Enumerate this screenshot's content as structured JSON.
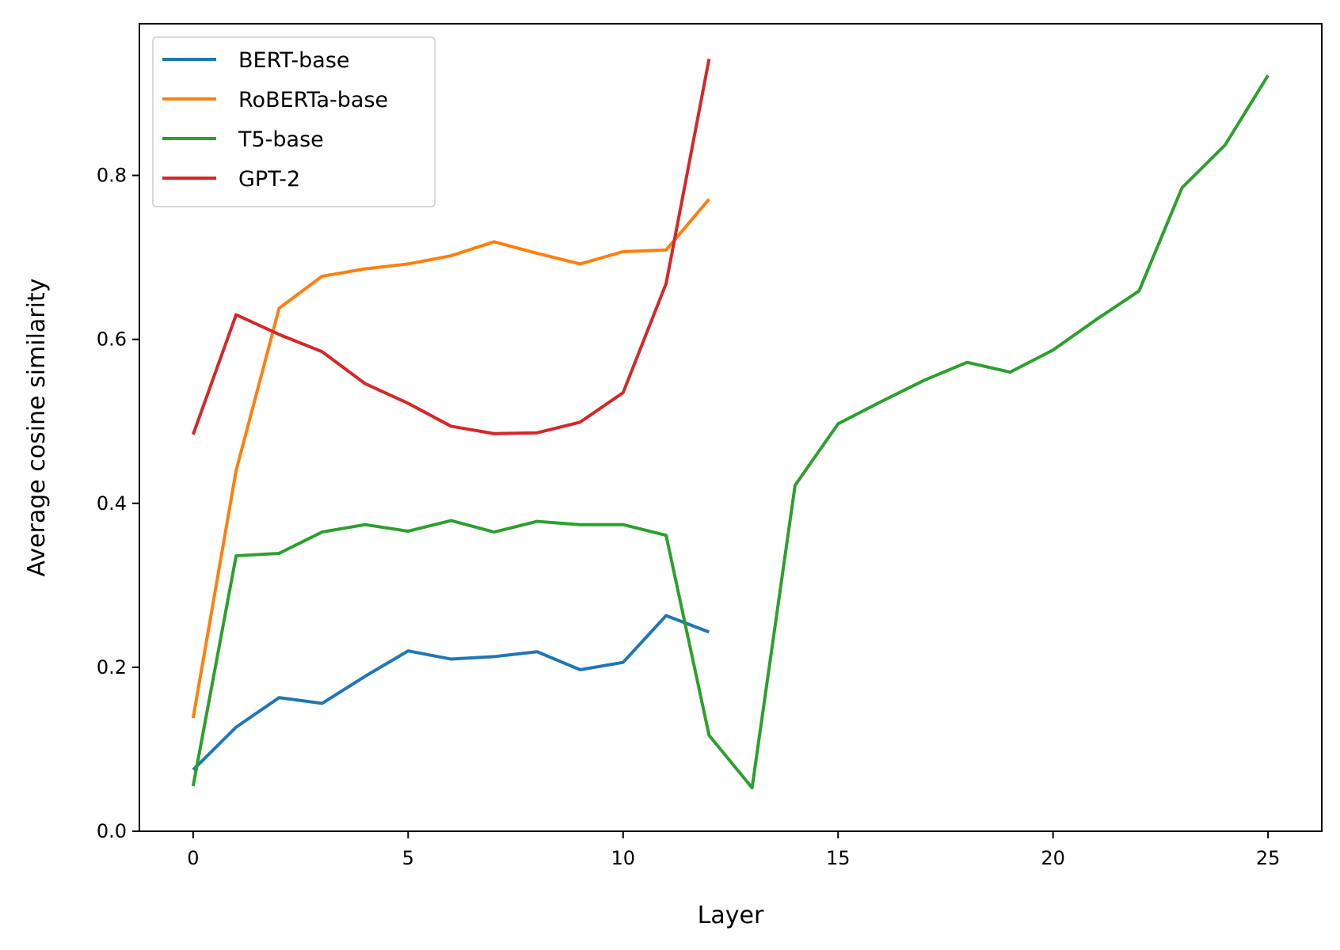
{
  "chart_data": {
    "type": "line",
    "xlabel": "Layer",
    "ylabel": "Average cosine similarity",
    "xlim": [
      -1.25,
      26.25
    ],
    "ylim": [
      0,
      0.985
    ],
    "xticks": [
      "0",
      "5",
      "10",
      "15",
      "20",
      "25"
    ],
    "yticks": [
      "0.0",
      "0.2",
      "0.4",
      "0.6",
      "0.8"
    ],
    "grid": false,
    "legend_position": "top-left",
    "series": [
      {
        "name": "BERT-base",
        "color": "#1f77b4",
        "x": [
          0,
          1,
          2,
          3,
          4,
          5,
          6,
          7,
          8,
          9,
          10,
          11,
          12
        ],
        "values": [
          0.075,
          0.127,
          0.163,
          0.156,
          0.189,
          0.22,
          0.21,
          0.213,
          0.219,
          0.197,
          0.206,
          0.263,
          0.243
        ]
      },
      {
        "name": "RoBERTa-base",
        "color": "#ff7f0e",
        "x": [
          0,
          1,
          2,
          3,
          4,
          5,
          6,
          7,
          8,
          9,
          10,
          11,
          12
        ],
        "values": [
          0.138,
          0.44,
          0.638,
          0.677,
          0.686,
          0.692,
          0.702,
          0.719,
          0.705,
          0.692,
          0.707,
          0.709,
          0.771
        ]
      },
      {
        "name": "T5-base",
        "color": "#2ca02c",
        "x": [
          0,
          1,
          2,
          3,
          4,
          5,
          6,
          7,
          8,
          9,
          10,
          11,
          12,
          13,
          14,
          15,
          16,
          17,
          18,
          19,
          20,
          21,
          22,
          23,
          24,
          25
        ],
        "values": [
          0.055,
          0.336,
          0.339,
          0.365,
          0.374,
          0.366,
          0.379,
          0.365,
          0.378,
          0.374,
          0.374,
          0.361,
          0.117,
          0.053,
          0.422,
          0.497,
          0.524,
          0.55,
          0.572,
          0.56,
          0.587,
          0.624,
          0.659,
          0.785,
          0.837,
          0.922
        ]
      },
      {
        "name": "GPT-2",
        "color": "#d62728",
        "x": [
          0,
          1,
          2,
          3,
          4,
          5,
          6,
          7,
          8,
          9,
          10,
          11,
          12
        ],
        "values": [
          0.484,
          0.63,
          0.606,
          0.585,
          0.546,
          0.522,
          0.494,
          0.485,
          0.486,
          0.499,
          0.535,
          0.668,
          0.942
        ]
      }
    ]
  }
}
